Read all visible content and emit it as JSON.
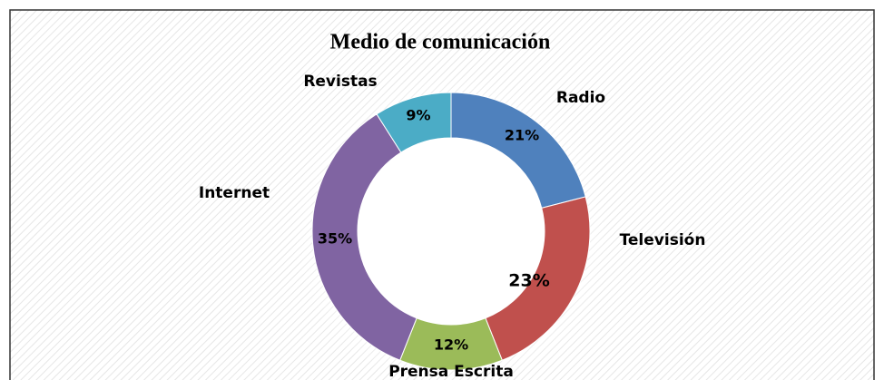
{
  "chart_data": {
    "type": "donut",
    "title": "Medio de comunicación",
    "categories": [
      "Radio",
      "Televisión",
      "Prensa Escrita",
      "Internet",
      "Revistas"
    ],
    "values": [
      21,
      23,
      12,
      35,
      9
    ],
    "value_labels": [
      "21%",
      "23%",
      "12%",
      "35%",
      "9%"
    ],
    "colors": [
      "#4f81bd",
      "#c0504d",
      "#9bbb59",
      "#8064a2",
      "#4bacc6"
    ]
  }
}
